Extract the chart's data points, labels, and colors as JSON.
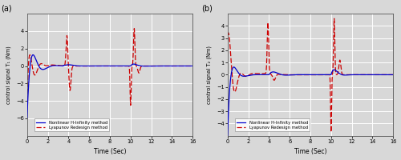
{
  "title_a": "(a)",
  "title_b": "(b)",
  "xlabel": "Time (Sec)",
  "ylabel_a": "control signal T₁ (Nm)",
  "ylabel_b": "control signal T₂ (Nm)",
  "ylim_a": [
    -8,
    6
  ],
  "ylim_b": [
    -5,
    5
  ],
  "xlim": [
    0,
    16
  ],
  "yticks_a": [
    -6,
    -4,
    -2,
    0,
    2,
    4
  ],
  "yticks_b": [
    -4,
    -3,
    -2,
    -1,
    0,
    1,
    2,
    3,
    4
  ],
  "xticks": [
    0,
    2,
    4,
    6,
    8,
    10,
    12,
    14,
    16
  ],
  "legend_hinf": "Nonlinear H-Infinity method",
  "legend_lyap": "Lyapunov Redesign method",
  "color_hinf": "#0000cc",
  "color_lyap": "#cc0000",
  "bg_color": "#d8d8d8",
  "grid_color": "white"
}
